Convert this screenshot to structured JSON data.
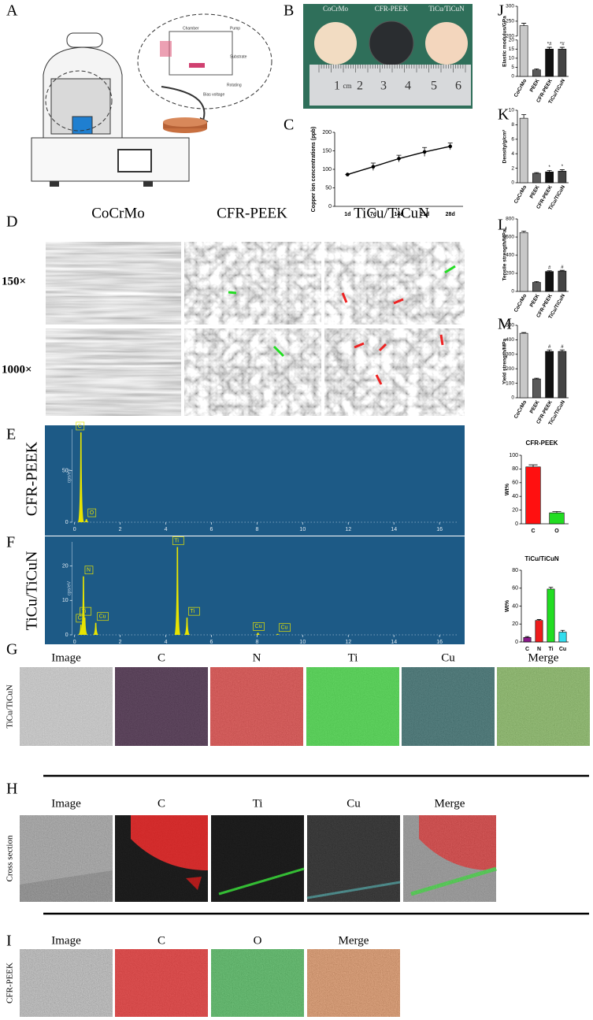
{
  "letters": [
    "A",
    "B",
    "C",
    "D",
    "E",
    "F",
    "G",
    "H",
    "I",
    "J",
    "K",
    "L",
    "M"
  ],
  "A": {
    "labels": [
      "Chamber",
      "Pump",
      "Substrate",
      "Rotating",
      "Bias voltage"
    ]
  },
  "B": {
    "samples": [
      "CoCrMo",
      "CFR-PEEK",
      "TiCu/TiCuN"
    ],
    "ruler": [
      "1",
      "cm",
      "2",
      "3",
      "4",
      "5",
      "6"
    ]
  },
  "D": {
    "columns": [
      "CoCrMo",
      "CFR-PEEK",
      "TiCu/TiCuN"
    ],
    "rows": [
      "150×",
      "1000×"
    ]
  },
  "E": {
    "label": "CFR-PEEK"
  },
  "F": {
    "label": "TiCu/TiCuN"
  },
  "G": {
    "row_label": "TiCu/TiCuN",
    "columns": [
      "Image",
      "C",
      "N",
      "Ti",
      "Cu",
      "Merge"
    ]
  },
  "H": {
    "row_label": "Cross section",
    "columns": [
      "Image",
      "C",
      "Ti",
      "Cu",
      "Merge"
    ]
  },
  "I": {
    "row_label": "CFR-PEEK",
    "columns": [
      "Image",
      "C",
      "O",
      "Merge"
    ]
  },
  "chart_data": [
    {
      "type": "line",
      "y_label": "Copper ion concentrations (ppb)",
      "categories": [
        "1d",
        "7d",
        "14d",
        "21d",
        "28d"
      ],
      "series": [
        {
          "color": "#000000",
          "values": [
            86,
            107,
            129,
            147,
            162
          ],
          "errors": [
            0,
            10,
            9,
            12,
            9
          ]
        }
      ],
      "ylim": [
        0,
        200
      ],
      "yticks": [
        0,
        50,
        100,
        150,
        200
      ]
    },
    {
      "type": "bar",
      "y_label": "Elastic modulus/GPa",
      "categories": [
        "CoCrMo",
        "PEEK",
        "CFR-PEEK",
        "TiCu/TiCuN"
      ],
      "values": [
        235,
        3.6,
        15,
        15
      ],
      "errors": [
        8,
        0.5,
        1,
        1
      ],
      "annotations": [
        null,
        null,
        "*#",
        "*#"
      ],
      "colors": [
        "#c8c8c8",
        "#5a5a5a",
        "#111111",
        "#444444"
      ],
      "ylim": [
        0,
        300
      ],
      "ybreak": [
        20,
        200
      ],
      "yticks": [
        0,
        5,
        10,
        15,
        20,
        200,
        250,
        300
      ]
    },
    {
      "type": "bar",
      "y_label": "Density/g/cm³",
      "categories": [
        "CoCrMo",
        "PEEK",
        "CFR-PEEK",
        "TiCu/TiCuN"
      ],
      "values": [
        8.9,
        1.3,
        1.5,
        1.6
      ],
      "errors": [
        0.5,
        0.1,
        0.2,
        0.2
      ],
      "annotations": [
        null,
        null,
        "*",
        "*"
      ],
      "colors": [
        "#c8c8c8",
        "#5a5a5a",
        "#111111",
        "#444444"
      ],
      "ylim": [
        0,
        10
      ],
      "yticks": [
        0,
        2,
        4,
        6,
        8,
        10
      ]
    },
    {
      "type": "bar",
      "y_label": "Tensile strength/MPa",
      "categories": [
        "CoCrMo",
        "PEEK",
        "CFR-PEEK",
        "TiCu/TiCuN"
      ],
      "values": [
        650,
        100,
        220,
        225
      ],
      "errors": [
        15,
        10,
        8,
        8
      ],
      "annotations": [
        null,
        null,
        "#",
        "#"
      ],
      "colors": [
        "#c8c8c8",
        "#5a5a5a",
        "#111111",
        "#444444"
      ],
      "ylim": [
        0,
        800
      ],
      "yticks": [
        0,
        200,
        400,
        600,
        800
      ]
    },
    {
      "type": "bar",
      "y_label": "Yield strength/MPa",
      "categories": [
        "CoCrMo",
        "PEEK",
        "CFR-PEEK",
        "TiCu/TiCuN"
      ],
      "values": [
        445,
        130,
        320,
        320
      ],
      "errors": [
        5,
        5,
        10,
        10
      ],
      "annotations": [
        null,
        null,
        "#",
        "#"
      ],
      "colors": [
        "#c8c8c8",
        "#5a5a5a",
        "#111111",
        "#444444"
      ],
      "ylim": [
        0,
        500
      ],
      "yticks": [
        0,
        100,
        200,
        300,
        400,
        500
      ]
    },
    {
      "type": "spectrum",
      "y_label": "cps/eV",
      "color": "#e8e400",
      "peaks": [
        {
          "x": 0.28,
          "height": 87,
          "label": "C"
        },
        {
          "x": 0.52,
          "height": 3,
          "label": "O"
        }
      ],
      "xlim": [
        -1.3,
        17.1
      ],
      "xticks": [
        0,
        2,
        4,
        6,
        8,
        10,
        12,
        14,
        16
      ],
      "ylim": [
        0,
        90
      ],
      "yticks": [
        0,
        50
      ]
    },
    {
      "type": "spectrum",
      "y_label": "cps/eV",
      "color": "#e8e400",
      "peaks": [
        {
          "x": 0.28,
          "height": 3,
          "label": "C"
        },
        {
          "x": 0.39,
          "height": 17,
          "label": "N"
        },
        {
          "x": 0.45,
          "height": 5,
          "label": "Ti"
        },
        {
          "x": 0.93,
          "height": 3.5,
          "label": "Cu"
        },
        {
          "x": 4.51,
          "height": 25.5,
          "label": "Ti"
        },
        {
          "x": 4.93,
          "height": 5,
          "label": "Ti"
        },
        {
          "x": 8.04,
          "height": 0.6,
          "label": "Cu"
        },
        {
          "x": 8.9,
          "height": 0.3,
          "label": "Cu"
        }
      ],
      "xlim": [
        -1.3,
        17.1
      ],
      "xticks": [
        0,
        2,
        4,
        6,
        8,
        10,
        12,
        14,
        16
      ],
      "ylim": [
        0,
        27
      ],
      "yticks": [
        0,
        10,
        20
      ]
    },
    {
      "type": "bar",
      "title": "CFR-PEEK",
      "y_label": "Wt%",
      "categories": [
        "C",
        "O"
      ],
      "values": [
        83,
        16
      ],
      "errors": [
        3,
        2
      ],
      "colors": [
        "#ff1010",
        "#22dd22"
      ],
      "ylim": [
        0,
        100
      ],
      "yticks": [
        0,
        20,
        40,
        60,
        80,
        100
      ]
    },
    {
      "type": "bar",
      "title": "TiCu/TiCuN",
      "y_label": "Wt%",
      "categories": [
        "C",
        "N",
        "Ti",
        "Cu"
      ],
      "values": [
        5,
        24,
        59,
        11
      ],
      "errors": [
        1,
        1,
        2,
        2
      ],
      "colors": [
        "#8a1a8a",
        "#ee1c1c",
        "#22dd22",
        "#33ddee"
      ],
      "ylim": [
        0,
        80
      ],
      "yticks": [
        0,
        20,
        40,
        60,
        80
      ]
    }
  ]
}
